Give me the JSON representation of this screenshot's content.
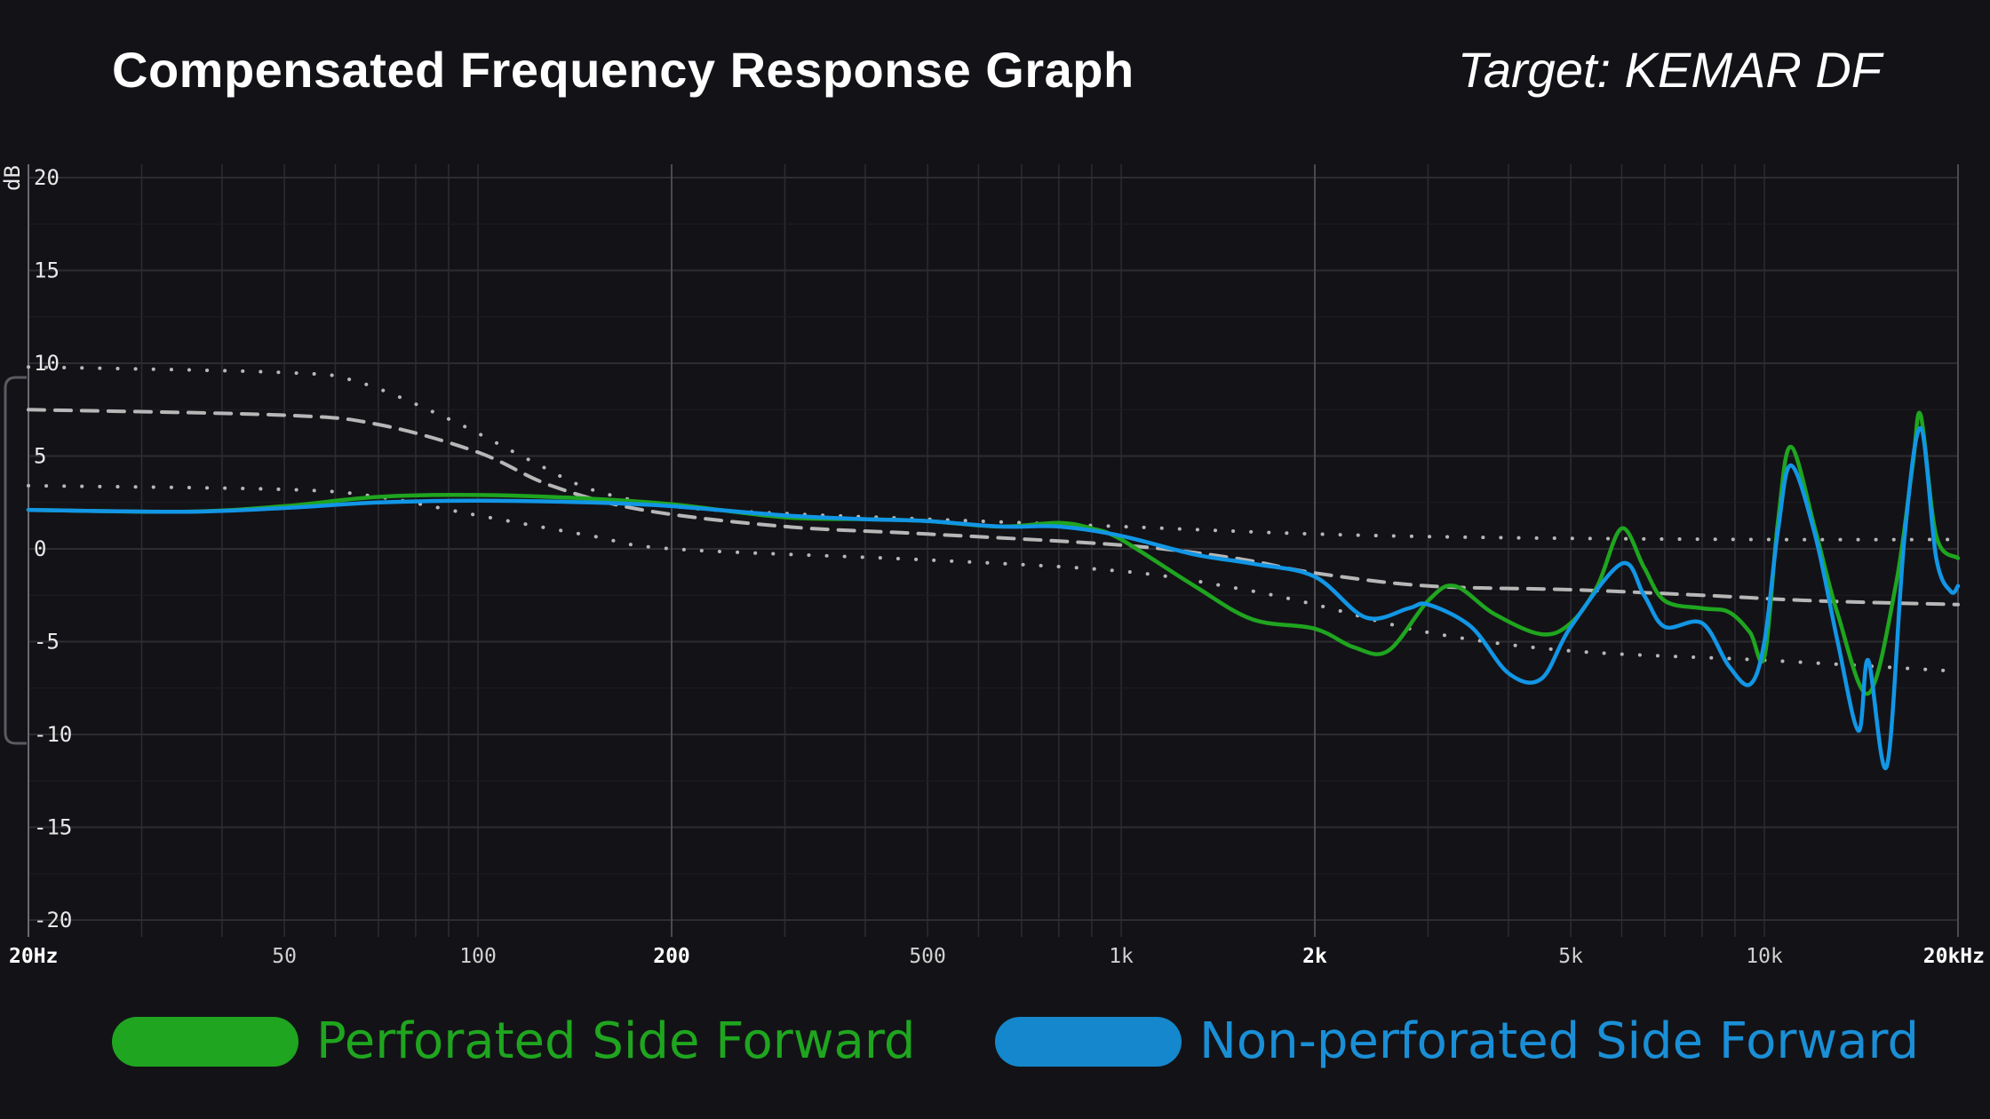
{
  "header": {
    "title": "Compensated Frequency Response Graph",
    "target": "Target: KEMAR DF"
  },
  "colors": {
    "background": "#131317",
    "grid": "#2c2c31",
    "grid_major": "#4a4a50",
    "target": "#b7b7b7",
    "perforated": "#1fa51f",
    "non_perforated": "#1296e6"
  },
  "legend": [
    {
      "label": "Perforated Side Forward",
      "color": "#1fa51f"
    },
    {
      "label": "Non-perforated Side Forward",
      "color": "#1a8fd6"
    }
  ],
  "chart_data": {
    "type": "line",
    "title": "Compensated Frequency Response Graph",
    "xlabel": "",
    "ylabel": "dB",
    "x_scale": "log",
    "xlim": [
      20,
      20000
    ],
    "ylim": [
      -20,
      20
    ],
    "y_ticks": [
      20,
      15,
      10,
      5,
      0,
      -5,
      -10,
      -15,
      -20
    ],
    "x_ticks": [
      {
        "value": 20,
        "label": "20Hz",
        "major": true
      },
      {
        "value": 50,
        "label": "50",
        "major": false
      },
      {
        "value": 100,
        "label": "100",
        "major": false
      },
      {
        "value": 200,
        "label": "200",
        "major": true
      },
      {
        "value": 500,
        "label": "500",
        "major": false
      },
      {
        "value": 1000,
        "label": "1k",
        "major": false
      },
      {
        "value": 2000,
        "label": "2k",
        "major": true
      },
      {
        "value": 5000,
        "label": "5k",
        "major": false
      },
      {
        "value": 10000,
        "label": "10k",
        "major": false
      },
      {
        "value": 20000,
        "label": "20kHz",
        "major": true
      }
    ],
    "series": [
      {
        "name": "Target (KEMAR DF)",
        "style": "dashed",
        "color": "#b7b7b7",
        "points": [
          [
            20,
            7.5
          ],
          [
            50,
            7.2
          ],
          [
            70,
            6.7
          ],
          [
            100,
            5.2
          ],
          [
            130,
            3.4
          ],
          [
            180,
            2.1
          ],
          [
            300,
            1.2
          ],
          [
            500,
            0.8
          ],
          [
            1000,
            0.2
          ],
          [
            1500,
            -0.5
          ],
          [
            2000,
            -1.3
          ],
          [
            3000,
            -2.0
          ],
          [
            5000,
            -2.2
          ],
          [
            8000,
            -2.5
          ],
          [
            12000,
            -2.8
          ],
          [
            20000,
            -3.0
          ]
        ]
      },
      {
        "name": "Target upper bound",
        "style": "dotted",
        "color": "#b7b7b7",
        "points": [
          [
            20,
            9.8
          ],
          [
            50,
            9.5
          ],
          [
            65,
            9.0
          ],
          [
            90,
            7.0
          ],
          [
            120,
            4.8
          ],
          [
            150,
            3.2
          ],
          [
            200,
            2.3
          ],
          [
            300,
            1.9
          ],
          [
            500,
            1.6
          ],
          [
            1000,
            1.2
          ],
          [
            2000,
            0.8
          ],
          [
            4000,
            0.6
          ],
          [
            10000,
            0.5
          ],
          [
            20000,
            0.5
          ]
        ]
      },
      {
        "name": "Target lower bound",
        "style": "dotted",
        "color": "#b7b7b7",
        "points": [
          [
            20,
            3.4
          ],
          [
            50,
            3.2
          ],
          [
            70,
            2.8
          ],
          [
            100,
            1.8
          ],
          [
            150,
            0.7
          ],
          [
            200,
            0
          ],
          [
            500,
            -0.6
          ],
          [
            1000,
            -1.2
          ],
          [
            1500,
            -2.1
          ],
          [
            2000,
            -3.0
          ],
          [
            3000,
            -4.5
          ],
          [
            5000,
            -5.5
          ],
          [
            10000,
            -6.0
          ],
          [
            20000,
            -6.6
          ]
        ]
      },
      {
        "name": "Perforated Side Forward",
        "style": "solid",
        "color": "#1fa51f",
        "points": [
          [
            20,
            2.1
          ],
          [
            35,
            2.0
          ],
          [
            50,
            2.3
          ],
          [
            70,
            2.8
          ],
          [
            100,
            2.9
          ],
          [
            150,
            2.7
          ],
          [
            200,
            2.4
          ],
          [
            300,
            1.7
          ],
          [
            400,
            1.6
          ],
          [
            500,
            1.5
          ],
          [
            650,
            1.2
          ],
          [
            800,
            1.4
          ],
          [
            900,
            1.1
          ],
          [
            1000,
            0.5
          ],
          [
            1300,
            -2.0
          ],
          [
            1600,
            -3.8
          ],
          [
            2000,
            -4.3
          ],
          [
            2300,
            -5.3
          ],
          [
            2600,
            -5.5
          ],
          [
            3000,
            -2.8
          ],
          [
            3300,
            -2.0
          ],
          [
            3800,
            -3.5
          ],
          [
            4500,
            -4.6
          ],
          [
            5000,
            -4.0
          ],
          [
            5500,
            -2.0
          ],
          [
            6000,
            1.1
          ],
          [
            6500,
            -1.0
          ],
          [
            7000,
            -2.8
          ],
          [
            8000,
            -3.2
          ],
          [
            8800,
            -3.4
          ],
          [
            9500,
            -4.5
          ],
          [
            10000,
            -5.8
          ],
          [
            10500,
            1.5
          ],
          [
            11000,
            5.5
          ],
          [
            12000,
            1.0
          ],
          [
            13000,
            -3.5
          ],
          [
            14500,
            -7.8
          ],
          [
            16000,
            -2.0
          ],
          [
            17000,
            4.5
          ],
          [
            17500,
            7.2
          ],
          [
            18500,
            0.7
          ],
          [
            20000,
            -0.5
          ]
        ]
      },
      {
        "name": "Non-perforated Side Forward",
        "style": "solid",
        "color": "#1296e6",
        "points": [
          [
            20,
            2.1
          ],
          [
            35,
            2.0
          ],
          [
            50,
            2.2
          ],
          [
            70,
            2.5
          ],
          [
            100,
            2.6
          ],
          [
            150,
            2.5
          ],
          [
            200,
            2.3
          ],
          [
            300,
            1.8
          ],
          [
            400,
            1.6
          ],
          [
            500,
            1.5
          ],
          [
            650,
            1.2
          ],
          [
            800,
            1.2
          ],
          [
            1000,
            0.7
          ],
          [
            1300,
            -0.3
          ],
          [
            1600,
            -0.8
          ],
          [
            2000,
            -1.5
          ],
          [
            2400,
            -3.7
          ],
          [
            2800,
            -3.2
          ],
          [
            3000,
            -3.0
          ],
          [
            3500,
            -4.2
          ],
          [
            4000,
            -6.7
          ],
          [
            4500,
            -7.0
          ],
          [
            5000,
            -4.2
          ],
          [
            6000,
            -0.8
          ],
          [
            6500,
            -2.5
          ],
          [
            7000,
            -4.2
          ],
          [
            8000,
            -4.0
          ],
          [
            8800,
            -6.3
          ],
          [
            9500,
            -7.3
          ],
          [
            10000,
            -5.0
          ],
          [
            10500,
            1.0
          ],
          [
            11000,
            4.5
          ],
          [
            12000,
            0.7
          ],
          [
            13000,
            -5.0
          ],
          [
            14000,
            -9.8
          ],
          [
            14500,
            -6.0
          ],
          [
            15500,
            -11.7
          ],
          [
            16500,
            0.5
          ],
          [
            17500,
            6.5
          ],
          [
            18500,
            -0.5
          ],
          [
            19500,
            -2.3
          ],
          [
            20000,
            -2.0
          ]
        ]
      }
    ]
  }
}
